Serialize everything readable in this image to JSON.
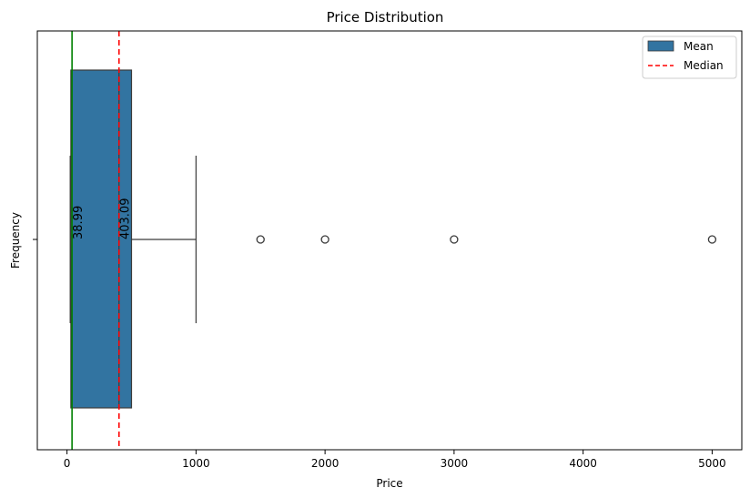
{
  "chart_data": {
    "type": "box",
    "title": "Price Distribution",
    "xlabel": "Price",
    "ylabel": "Frequency",
    "xlim": [
      -230,
      5230
    ],
    "xticks": [
      0,
      1000,
      2000,
      3000,
      4000,
      5000
    ],
    "box": {
      "whisker_low": 25,
      "q1": 30,
      "median": 403.09,
      "q3": 500,
      "whisker_high": 1000,
      "fill": "#3274a1",
      "edge": "#3a3a3a"
    },
    "outliers": [
      1500,
      2000,
      3000,
      5000
    ],
    "reference_lines": [
      {
        "value": 38.99,
        "label": "38.99",
        "color": "#008000",
        "style": "solid"
      },
      {
        "value": 403.09,
        "label": "403.09",
        "color": "#ff0000",
        "style": "dashed"
      }
    ],
    "legend": {
      "position": "top-right",
      "entries": [
        {
          "label": "Mean",
          "kind": "patch",
          "color": "#3274a1"
        },
        {
          "label": "Median",
          "kind": "dashed-line",
          "color": "#ff0000"
        }
      ]
    },
    "grid": false
  }
}
